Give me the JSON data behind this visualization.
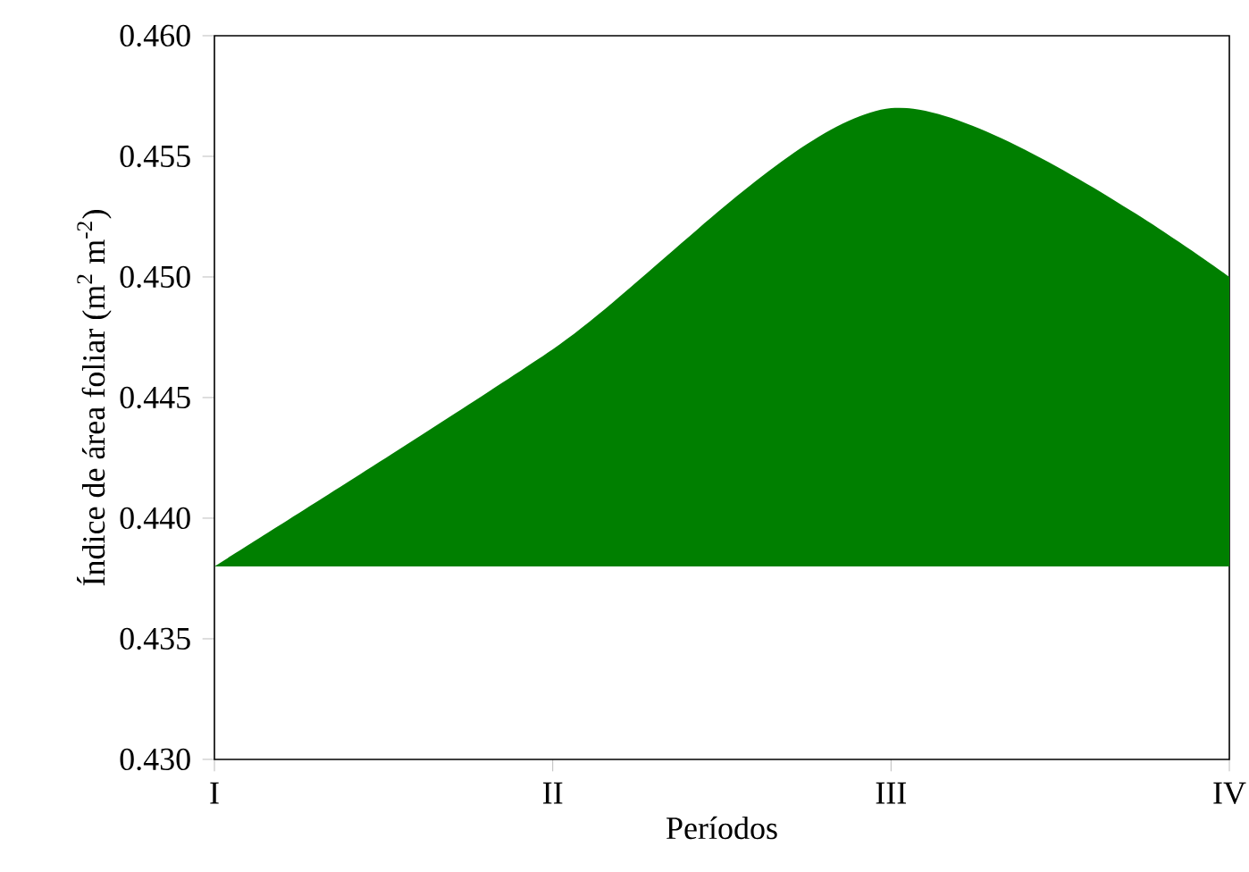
{
  "chart_data": {
    "type": "area",
    "xlabel": "Períodos",
    "ylabel": "Índice de área foliar (m$^{2}$ m$^{-2}$)",
    "categories": [
      "I",
      "II",
      "III",
      "IV"
    ],
    "values": [
      0.438,
      0.447,
      0.457,
      0.45
    ],
    "color": "#007f00",
    "ylim": [
      0.43,
      0.46
    ],
    "yticks": [
      {
        "value": 0.43,
        "label": "0.430"
      },
      {
        "value": 0.435,
        "label": "0.435"
      },
      {
        "value": 0.44,
        "label": "0.440"
      },
      {
        "value": 0.445,
        "label": "0.445"
      },
      {
        "value": 0.45,
        "label": "0.450"
      },
      {
        "value": 0.455,
        "label": "0.455"
      },
      {
        "value": 0.46,
        "label": "0.460"
      }
    ],
    "grid": false
  }
}
